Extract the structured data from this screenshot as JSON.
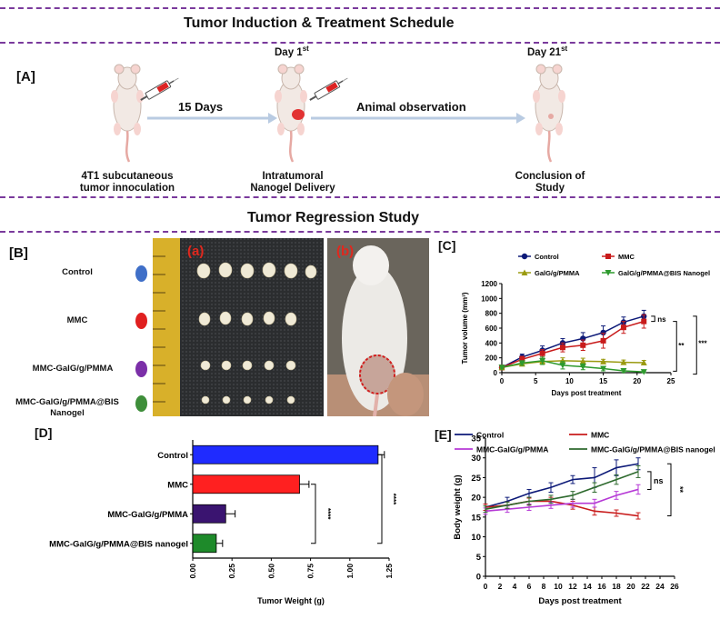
{
  "schedule": {
    "title": "Tumor Induction & Treatment Schedule",
    "panel_label": "[A]",
    "day1_label": "Day 1",
    "day1_sup": "st",
    "day21_label": "Day 21",
    "day21_sup": "st",
    "arrow1_label": "15 Days",
    "arrow2_label": "Animal observation",
    "step1_line1": "4T1 subcutaneous",
    "step1_line2": "tumor innoculation",
    "step2_line1": "Intratumoral",
    "step2_line2": "Nanogel Delivery",
    "step3_line1": "Conclusion of",
    "step3_line2": "Study"
  },
  "regression": {
    "title": "Tumor Regression Study",
    "panel_b": "[B]",
    "photo_a_label": "(a)",
    "photo_b_label": "(b)",
    "groups": [
      {
        "name": "Control",
        "color": "#3f6fc8"
      },
      {
        "name": "MMC",
        "color": "#e02020"
      },
      {
        "name": "MMC-GalG/g/PMMA",
        "color": "#7b2fa8"
      },
      {
        "name_line1": "MMC-GalG/g/PMMA@BIS",
        "name_line2": "Nanogel",
        "color": "#3e8e3a"
      }
    ]
  },
  "colors": {
    "divider": "#7a3a9c",
    "control": "#0d1a78",
    "mmc": "#c81b1b",
    "galg": "#9a9a10",
    "bis": "#2e9a2e",
    "bar_control": "#1f2bff",
    "bar_mmc": "#ff2020",
    "bar_galg": "#3a1470",
    "bar_bis": "#1e8a2a",
    "bw_galg": "#b63ad6",
    "bw_bis": "#2e6a2e"
  },
  "chart_data": [
    {
      "panel": "[C]",
      "type": "line",
      "xlabel": "Days post treatment",
      "ylabel": "Tumor volume (mm³)",
      "xlim": [
        0,
        25
      ],
      "ylim": [
        0,
        1200
      ],
      "xticks": [
        0,
        5,
        10,
        15,
        20,
        25
      ],
      "yticks": [
        0,
        200,
        400,
        600,
        800,
        1000,
        1200
      ],
      "series": [
        {
          "name": "Control",
          "x": [
            0,
            3,
            6,
            9,
            12,
            15,
            18,
            21
          ],
          "y": [
            70,
            210,
            300,
            400,
            460,
            540,
            680,
            760
          ],
          "err": [
            30,
            40,
            60,
            60,
            80,
            90,
            70,
            80
          ]
        },
        {
          "name": "MMC",
          "x": [
            0,
            3,
            6,
            9,
            12,
            15,
            18,
            21
          ],
          "y": [
            70,
            180,
            260,
            340,
            370,
            430,
            610,
            690
          ],
          "err": [
            30,
            40,
            50,
            60,
            70,
            100,
            80,
            90
          ]
        },
        {
          "name": "GalG/g/PMMA",
          "x": [
            0,
            3,
            6,
            9,
            12,
            15,
            18,
            21
          ],
          "y": [
            70,
            120,
            150,
            160,
            155,
            150,
            140,
            135
          ],
          "err": [
            20,
            30,
            30,
            40,
            40,
            30,
            30,
            30
          ]
        },
        {
          "name": "GalG/g/PMMA@BIS Nanogel",
          "x": [
            0,
            3,
            6,
            9,
            12,
            15,
            18,
            21
          ],
          "y": [
            70,
            130,
            160,
            100,
            80,
            55,
            25,
            10
          ],
          "err": [
            20,
            30,
            50,
            50,
            40,
            30,
            20,
            10
          ]
        }
      ],
      "annotations": [
        "ns",
        "**",
        "***"
      ]
    },
    {
      "panel": "[D]",
      "type": "bar",
      "orientation": "horizontal",
      "xlabel": "Tumor Weight (g)",
      "xlim": [
        0,
        1.25
      ],
      "xticks": [
        "0.00",
        "0.25",
        "0.50",
        "0.75",
        "1.00",
        "1.25"
      ],
      "categories": [
        "Control",
        "MMC",
        "MMC-GalG/g/PMMA",
        "MMC-GalG/g/PMMA@BIS nanogel"
      ],
      "values": [
        1.18,
        0.68,
        0.21,
        0.15
      ],
      "err": [
        0.04,
        0.06,
        0.06,
        0.04
      ],
      "annotations": [
        "****",
        "****"
      ]
    },
    {
      "panel": "[E]",
      "type": "line",
      "xlabel": "Days post treatment",
      "ylabel": "Body weight (g)",
      "xlim": [
        0,
        26
      ],
      "ylim": [
        0,
        35
      ],
      "xticks": [
        0,
        2,
        4,
        6,
        8,
        10,
        12,
        14,
        16,
        18,
        20,
        22,
        24,
        26
      ],
      "yticks": [
        0,
        5,
        10,
        15,
        20,
        25,
        30,
        35
      ],
      "series": [
        {
          "name": "Control",
          "x": [
            0,
            3,
            6,
            9,
            12,
            15,
            18,
            21
          ],
          "y": [
            17.5,
            19,
            21,
            22.5,
            24.5,
            25,
            27.5,
            28.5
          ],
          "err": [
            0.8,
            1,
            1,
            1.2,
            1,
            2.5,
            2,
            1.5
          ]
        },
        {
          "name": "MMC",
          "x": [
            0,
            3,
            6,
            9,
            12,
            15,
            18,
            21
          ],
          "y": [
            17.5,
            18,
            19,
            19,
            18,
            16.5,
            16,
            15.3
          ],
          "err": [
            0.8,
            0.8,
            0.8,
            1,
            1,
            1,
            0.8,
            0.8
          ]
        },
        {
          "name": "MMC-GalG/g/PMMA",
          "x": [
            0,
            3,
            6,
            9,
            12,
            15,
            18,
            21
          ],
          "y": [
            16.5,
            17,
            17.5,
            18,
            18.5,
            18.5,
            20.5,
            22
          ],
          "err": [
            0.8,
            0.8,
            0.8,
            0.8,
            1,
            1,
            1,
            1.2
          ]
        },
        {
          "name": "MMC-GalG/g/PMMA@BIS nanogel",
          "x": [
            0,
            3,
            6,
            9,
            12,
            15,
            18,
            21
          ],
          "y": [
            17,
            18,
            19,
            19.5,
            20.5,
            22.5,
            24.5,
            26.5
          ],
          "err": [
            0.8,
            0.8,
            1,
            1,
            1,
            1.2,
            1.2,
            1.5
          ]
        }
      ],
      "annotations": [
        "ns",
        "**"
      ]
    }
  ]
}
